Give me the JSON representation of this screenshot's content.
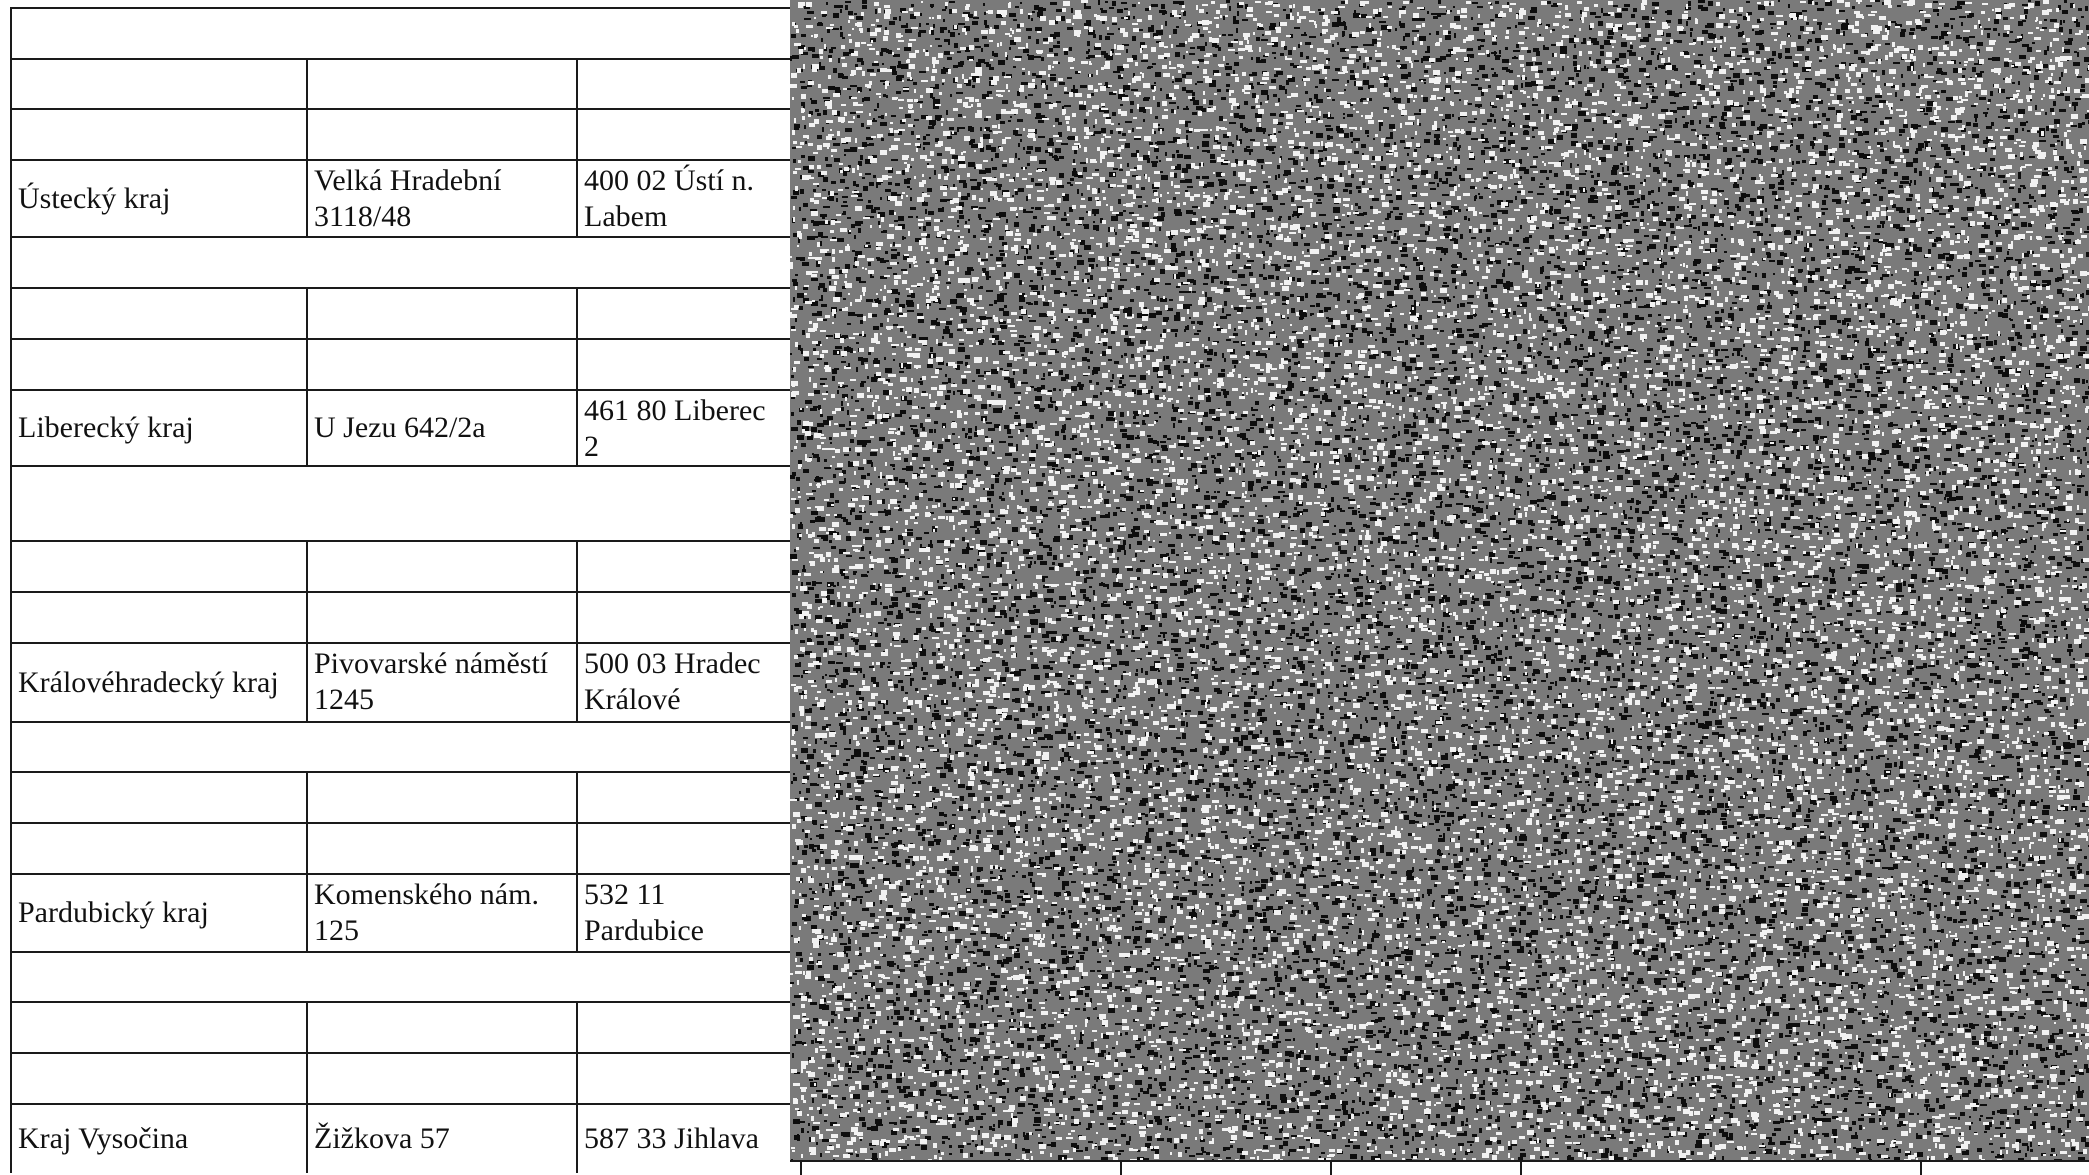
{
  "rows": [
    {
      "type": "blank"
    },
    {
      "type": "empty"
    },
    {
      "type": "empty"
    },
    {
      "type": "entry",
      "region": "Ústecký kraj",
      "address": "Velká Hradební\n3118/48",
      "postal": "400 02 Ústí n.\nLabem"
    },
    {
      "type": "blank"
    },
    {
      "type": "empty"
    },
    {
      "type": "empty"
    },
    {
      "type": "entry",
      "region": "Liberecký kraj",
      "address": "U Jezu 642/2a",
      "postal": "461 80 Liberec\n2"
    },
    {
      "type": "blank"
    },
    {
      "type": "empty"
    },
    {
      "type": "empty"
    },
    {
      "type": "entry",
      "region": "Královéhradecký kraj",
      "address": "Pivovarské náměstí\n1245",
      "postal": "500 03 Hradec\nKrálové"
    },
    {
      "type": "blank"
    },
    {
      "type": "empty"
    },
    {
      "type": "empty"
    },
    {
      "type": "entry",
      "region": "Pardubický kraj",
      "address": "Komenského nám.\n125",
      "postal": "532 11\nPardubice"
    },
    {
      "type": "blank"
    },
    {
      "type": "empty"
    },
    {
      "type": "empty"
    },
    {
      "type": "entry",
      "region": "Kraj Vysočina",
      "address": "Žižkova 57",
      "postal": "587 33 Jihlava"
    }
  ],
  "colors": {
    "rule": "#1a1a1a",
    "noise_dark": "#0d0d0d",
    "noise_light": "#f2f2f2"
  }
}
